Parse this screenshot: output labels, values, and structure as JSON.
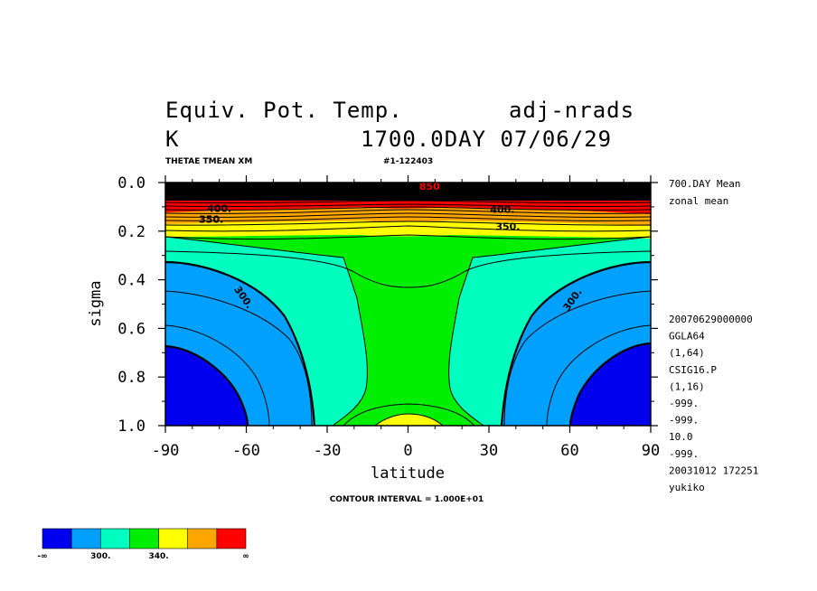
{
  "header": {
    "title_left": "Equiv. Pot. Temp.",
    "title_right": "adj-nrads",
    "units": "K",
    "time_label": "1700.0DAY 07/06/29",
    "variable_code": "THETAE TMEAN XM",
    "run_id": "#1-122403",
    "contour_interval": "CONTOUR INTERVAL = 1.000E+01"
  },
  "side_info": {
    "top": [
      "700.DAY Mean",
      "zonal mean"
    ],
    "bottom": [
      "20070629000000",
      "GGLA64",
      "(1,64)",
      "CSIG16.P",
      "(1,16)",
      "-999.",
      "-999.",
      "10.0",
      "-999.",
      "20031012 172251",
      "yukiko"
    ]
  },
  "chart_data": {
    "type": "contour",
    "xlabel": "latitude",
    "ylabel": "sigma",
    "xlim": [
      -90,
      90
    ],
    "ylim": [
      0.0,
      1.0
    ],
    "y_inverted": true,
    "x_ticks": [
      -90,
      -60,
      -30,
      0,
      30,
      60,
      90
    ],
    "x_tick_labels": [
      "-90",
      "-60",
      "-30",
      "0",
      "30",
      "60",
      "90"
    ],
    "y_ticks": [
      0.0,
      0.2,
      0.4,
      0.6,
      0.8,
      1.0
    ],
    "y_tick_labels": [
      "0.0",
      "0.2",
      "0.4",
      "0.6",
      "0.8",
      "1.0"
    ],
    "contour_interval": 10,
    "contour_labels": [
      {
        "text": "300.",
        "lat": -62,
        "sigma": 0.48
      },
      {
        "text": "300.",
        "lat": 62,
        "sigma": 0.49
      },
      {
        "text": "350.",
        "lat": -73,
        "sigma": 0.165
      },
      {
        "text": "350.",
        "lat": 37,
        "sigma": 0.195
      },
      {
        "text": "400.",
        "lat": -70,
        "sigma": 0.12
      },
      {
        "text": "400.",
        "lat": 35,
        "sigma": 0.125
      },
      {
        "text": "850",
        "lat": 8,
        "sigma": 0.03
      }
    ],
    "levels": [
      {
        "value": 290,
        "band": "-inf to 300",
        "color": "#0000ee"
      },
      {
        "value": 310,
        "band": "300 to 320",
        "color": "#00a0ff"
      },
      {
        "value": 330,
        "band": "320 to 340",
        "color": "#00ffbf"
      },
      {
        "value": 345,
        "band": "340 to 350",
        "color": "#00ee00"
      },
      {
        "value": 355,
        "band": "350 to 360",
        "color": "#ffff00"
      },
      {
        "value": 365,
        "band": "360 to 380",
        "color": "#ffa500"
      },
      {
        "value": 390,
        "band": "380 to inf",
        "color": "#ff0000"
      }
    ],
    "colorbar": {
      "colors": [
        "#0000ee",
        "#00a0ff",
        "#00ffbf",
        "#00ee00",
        "#ffff00",
        "#ffa500",
        "#ff0000"
      ],
      "labels": [
        {
          "text": "-∞",
          "index": 0
        },
        {
          "text": "300.",
          "index": 2
        },
        {
          "text": "340.",
          "index": 4
        },
        {
          "text": "∞",
          "index": 7
        }
      ]
    }
  }
}
